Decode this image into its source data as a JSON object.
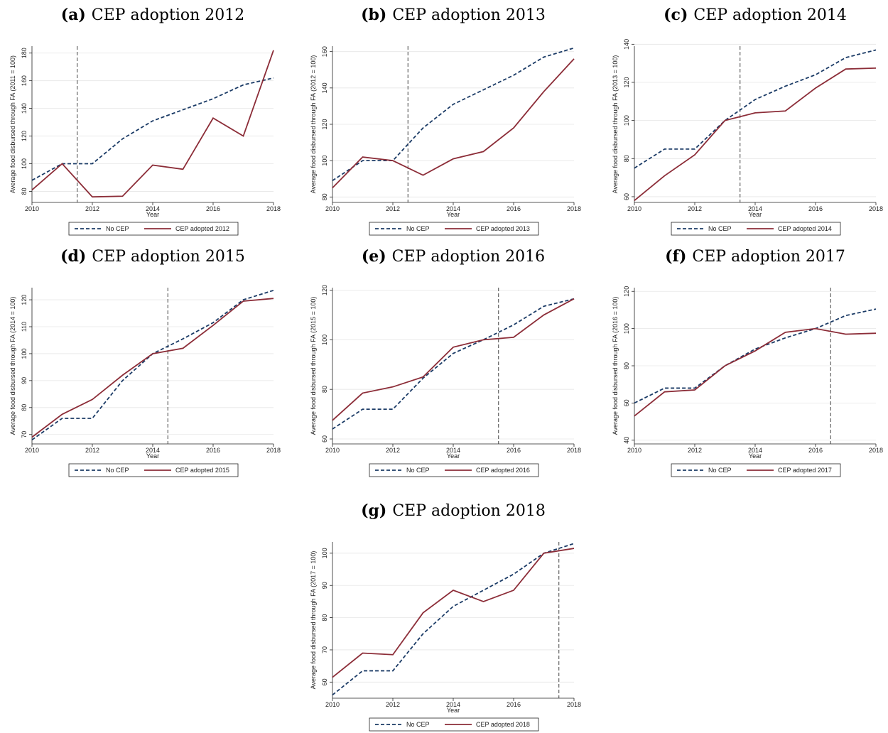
{
  "chart_data": [
    {
      "type": "line",
      "label": "(a)",
      "title": "CEP adoption 2012",
      "xlabel": "Year",
      "ylabel": "Average food disbursed through FA (2011 = 100)",
      "x": [
        2010,
        2011,
        2012,
        2013,
        2014,
        2015,
        2016,
        2017,
        2018
      ],
      "xlim": [
        2010,
        2018
      ],
      "xticks": [
        2010,
        2012,
        2014,
        2016,
        2018
      ],
      "ylim": [
        72,
        185
      ],
      "yticks": [
        80,
        100,
        120,
        140,
        160,
        180
      ],
      "grid": true,
      "vline": 2011.5,
      "series": [
        {
          "name": "No CEP",
          "color": "#1b3b66",
          "line_style": "dashed",
          "values": [
            88,
            100,
            100,
            118,
            131,
            139,
            147,
            157,
            162
          ]
        },
        {
          "name": "CEP adopted 2012",
          "color": "#8c2d38",
          "line_style": "solid",
          "values": [
            81,
            100,
            76,
            76.5,
            99,
            96,
            133,
            120,
            182
          ]
        }
      ]
    },
    {
      "type": "line",
      "label": "(b)",
      "title": "CEP adoption 2013",
      "xlabel": "Year",
      "ylabel": "Average food disbursed through FA (2012 = 100)",
      "x": [
        2010,
        2011,
        2012,
        2013,
        2014,
        2015,
        2016,
        2017,
        2018
      ],
      "xlim": [
        2010,
        2018
      ],
      "xticks": [
        2010,
        2012,
        2014,
        2016,
        2018
      ],
      "ylim": [
        77,
        163
      ],
      "yticks": [
        80,
        100,
        120,
        140,
        160
      ],
      "grid": true,
      "vline": 2012.5,
      "series": [
        {
          "name": "No CEP",
          "color": "#1b3b66",
          "line_style": "dashed",
          "values": [
            89,
            100,
            100,
            118,
            131,
            139,
            147,
            157,
            162
          ]
        },
        {
          "name": "CEP adopted 2013",
          "color": "#8c2d38",
          "line_style": "solid",
          "values": [
            85,
            102,
            100,
            92,
            101,
            105,
            118,
            138,
            156
          ]
        }
      ]
    },
    {
      "type": "line",
      "label": "(c)",
      "title": "CEP adoption 2014",
      "xlabel": "Year",
      "ylabel": "Average food disbursed through FA (2013 = 100)",
      "x": [
        2010,
        2011,
        2012,
        2013,
        2014,
        2015,
        2016,
        2017,
        2018
      ],
      "xlim": [
        2010,
        2018
      ],
      "xticks": [
        2010,
        2012,
        2014,
        2016,
        2018
      ],
      "ylim": [
        57,
        139
      ],
      "yticks": [
        60,
        80,
        100,
        120,
        140
      ],
      "grid": true,
      "vline": 2013.5,
      "series": [
        {
          "name": "No CEP",
          "color": "#1b3b66",
          "line_style": "dashed",
          "values": [
            75,
            85,
            85,
            100,
            111,
            118,
            124,
            133,
            137
          ]
        },
        {
          "name": "CEP adopted 2014",
          "color": "#8c2d38",
          "line_style": "solid",
          "values": [
            58,
            71,
            82,
            100,
            104,
            105,
            117,
            127,
            127.5
          ]
        }
      ]
    },
    {
      "type": "line",
      "label": "(d)",
      "title": "CEP adoption 2015",
      "xlabel": "Year",
      "ylabel": "Average food disbursed through FA (2014 = 100)",
      "x": [
        2010,
        2011,
        2012,
        2013,
        2014,
        2015,
        2016,
        2017,
        2018
      ],
      "xlim": [
        2010,
        2018
      ],
      "xticks": [
        2010,
        2012,
        2014,
        2016,
        2018
      ],
      "ylim": [
        66.5,
        124.5
      ],
      "yticks": [
        70,
        80,
        90,
        100,
        110,
        120
      ],
      "grid": true,
      "vline": 2014.5,
      "series": [
        {
          "name": "No CEP",
          "color": "#1b3b66",
          "line_style": "dashed",
          "values": [
            68,
            76,
            76,
            90,
            100,
            105.5,
            111.5,
            120,
            123.5
          ]
        },
        {
          "name": "CEP adopted 2015",
          "color": "#8c2d38",
          "line_style": "solid",
          "values": [
            69,
            77.5,
            83,
            92,
            100,
            102,
            110.5,
            119.5,
            120.5
          ]
        }
      ]
    },
    {
      "type": "line",
      "label": "(e)",
      "title": "CEP adoption 2016",
      "xlabel": "Year",
      "ylabel": "Average food disbursed through FA (2015 = 100)",
      "x": [
        2010,
        2011,
        2012,
        2013,
        2014,
        2015,
        2016,
        2017,
        2018
      ],
      "xlim": [
        2010,
        2018
      ],
      "xticks": [
        2010,
        2012,
        2014,
        2016,
        2018
      ],
      "ylim": [
        58,
        121
      ],
      "yticks": [
        60,
        80,
        100,
        120
      ],
      "grid": true,
      "vline": 2015.5,
      "series": [
        {
          "name": "No CEP",
          "color": "#1b3b66",
          "line_style": "dashed",
          "values": [
            64,
            72,
            72,
            84.5,
            94.5,
            100,
            106,
            113.5,
            116.5
          ]
        },
        {
          "name": "CEP adopted 2016",
          "color": "#8c2d38",
          "line_style": "solid",
          "values": [
            67.5,
            78.5,
            81,
            85,
            97,
            100,
            101,
            110,
            116.5
          ]
        }
      ]
    },
    {
      "type": "line",
      "label": "(f)",
      "title": "CEP adoption 2017",
      "xlabel": "Year",
      "ylabel": "Average food disbursed through FA (2016 = 100)",
      "x": [
        2010,
        2011,
        2012,
        2013,
        2014,
        2015,
        2016,
        2017,
        2018
      ],
      "xlim": [
        2010,
        2018
      ],
      "xticks": [
        2010,
        2012,
        2014,
        2016,
        2018
      ],
      "ylim": [
        38,
        122
      ],
      "yticks": [
        40,
        60,
        80,
        100,
        120
      ],
      "grid": true,
      "vline": 2016.5,
      "series": [
        {
          "name": "No CEP",
          "color": "#1b3b66",
          "line_style": "dashed",
          "values": [
            60,
            68,
            68,
            80,
            89,
            95,
            100,
            107,
            110.5
          ]
        },
        {
          "name": "CEP adopted 2017",
          "color": "#8c2d38",
          "line_style": "solid",
          "values": [
            53,
            66,
            67,
            80,
            88,
            98,
            100,
            97,
            97.5
          ]
        }
      ]
    },
    {
      "type": "line",
      "label": "(g)",
      "title": "CEP adoption 2018",
      "xlabel": "Year",
      "ylabel": "Average food disbursed through FA (2017 = 100)",
      "x": [
        2010,
        2011,
        2012,
        2013,
        2014,
        2015,
        2016,
        2017,
        2018
      ],
      "xlim": [
        2010,
        2018
      ],
      "xticks": [
        2010,
        2012,
        2014,
        2016,
        2018
      ],
      "ylim": [
        55,
        103.5
      ],
      "yticks": [
        60,
        70,
        80,
        90,
        100
      ],
      "grid": true,
      "vline": 2017.5,
      "series": [
        {
          "name": "No CEP",
          "color": "#1b3b66",
          "line_style": "dashed",
          "values": [
            56,
            63.5,
            63.5,
            75,
            83.5,
            88.5,
            93.5,
            100,
            103
          ]
        },
        {
          "name": "CEP adopted 2018",
          "color": "#8c2d38",
          "line_style": "solid",
          "values": [
            61.5,
            69,
            68.5,
            81.5,
            88.5,
            85,
            88.5,
            100,
            101.5
          ]
        }
      ]
    }
  ]
}
